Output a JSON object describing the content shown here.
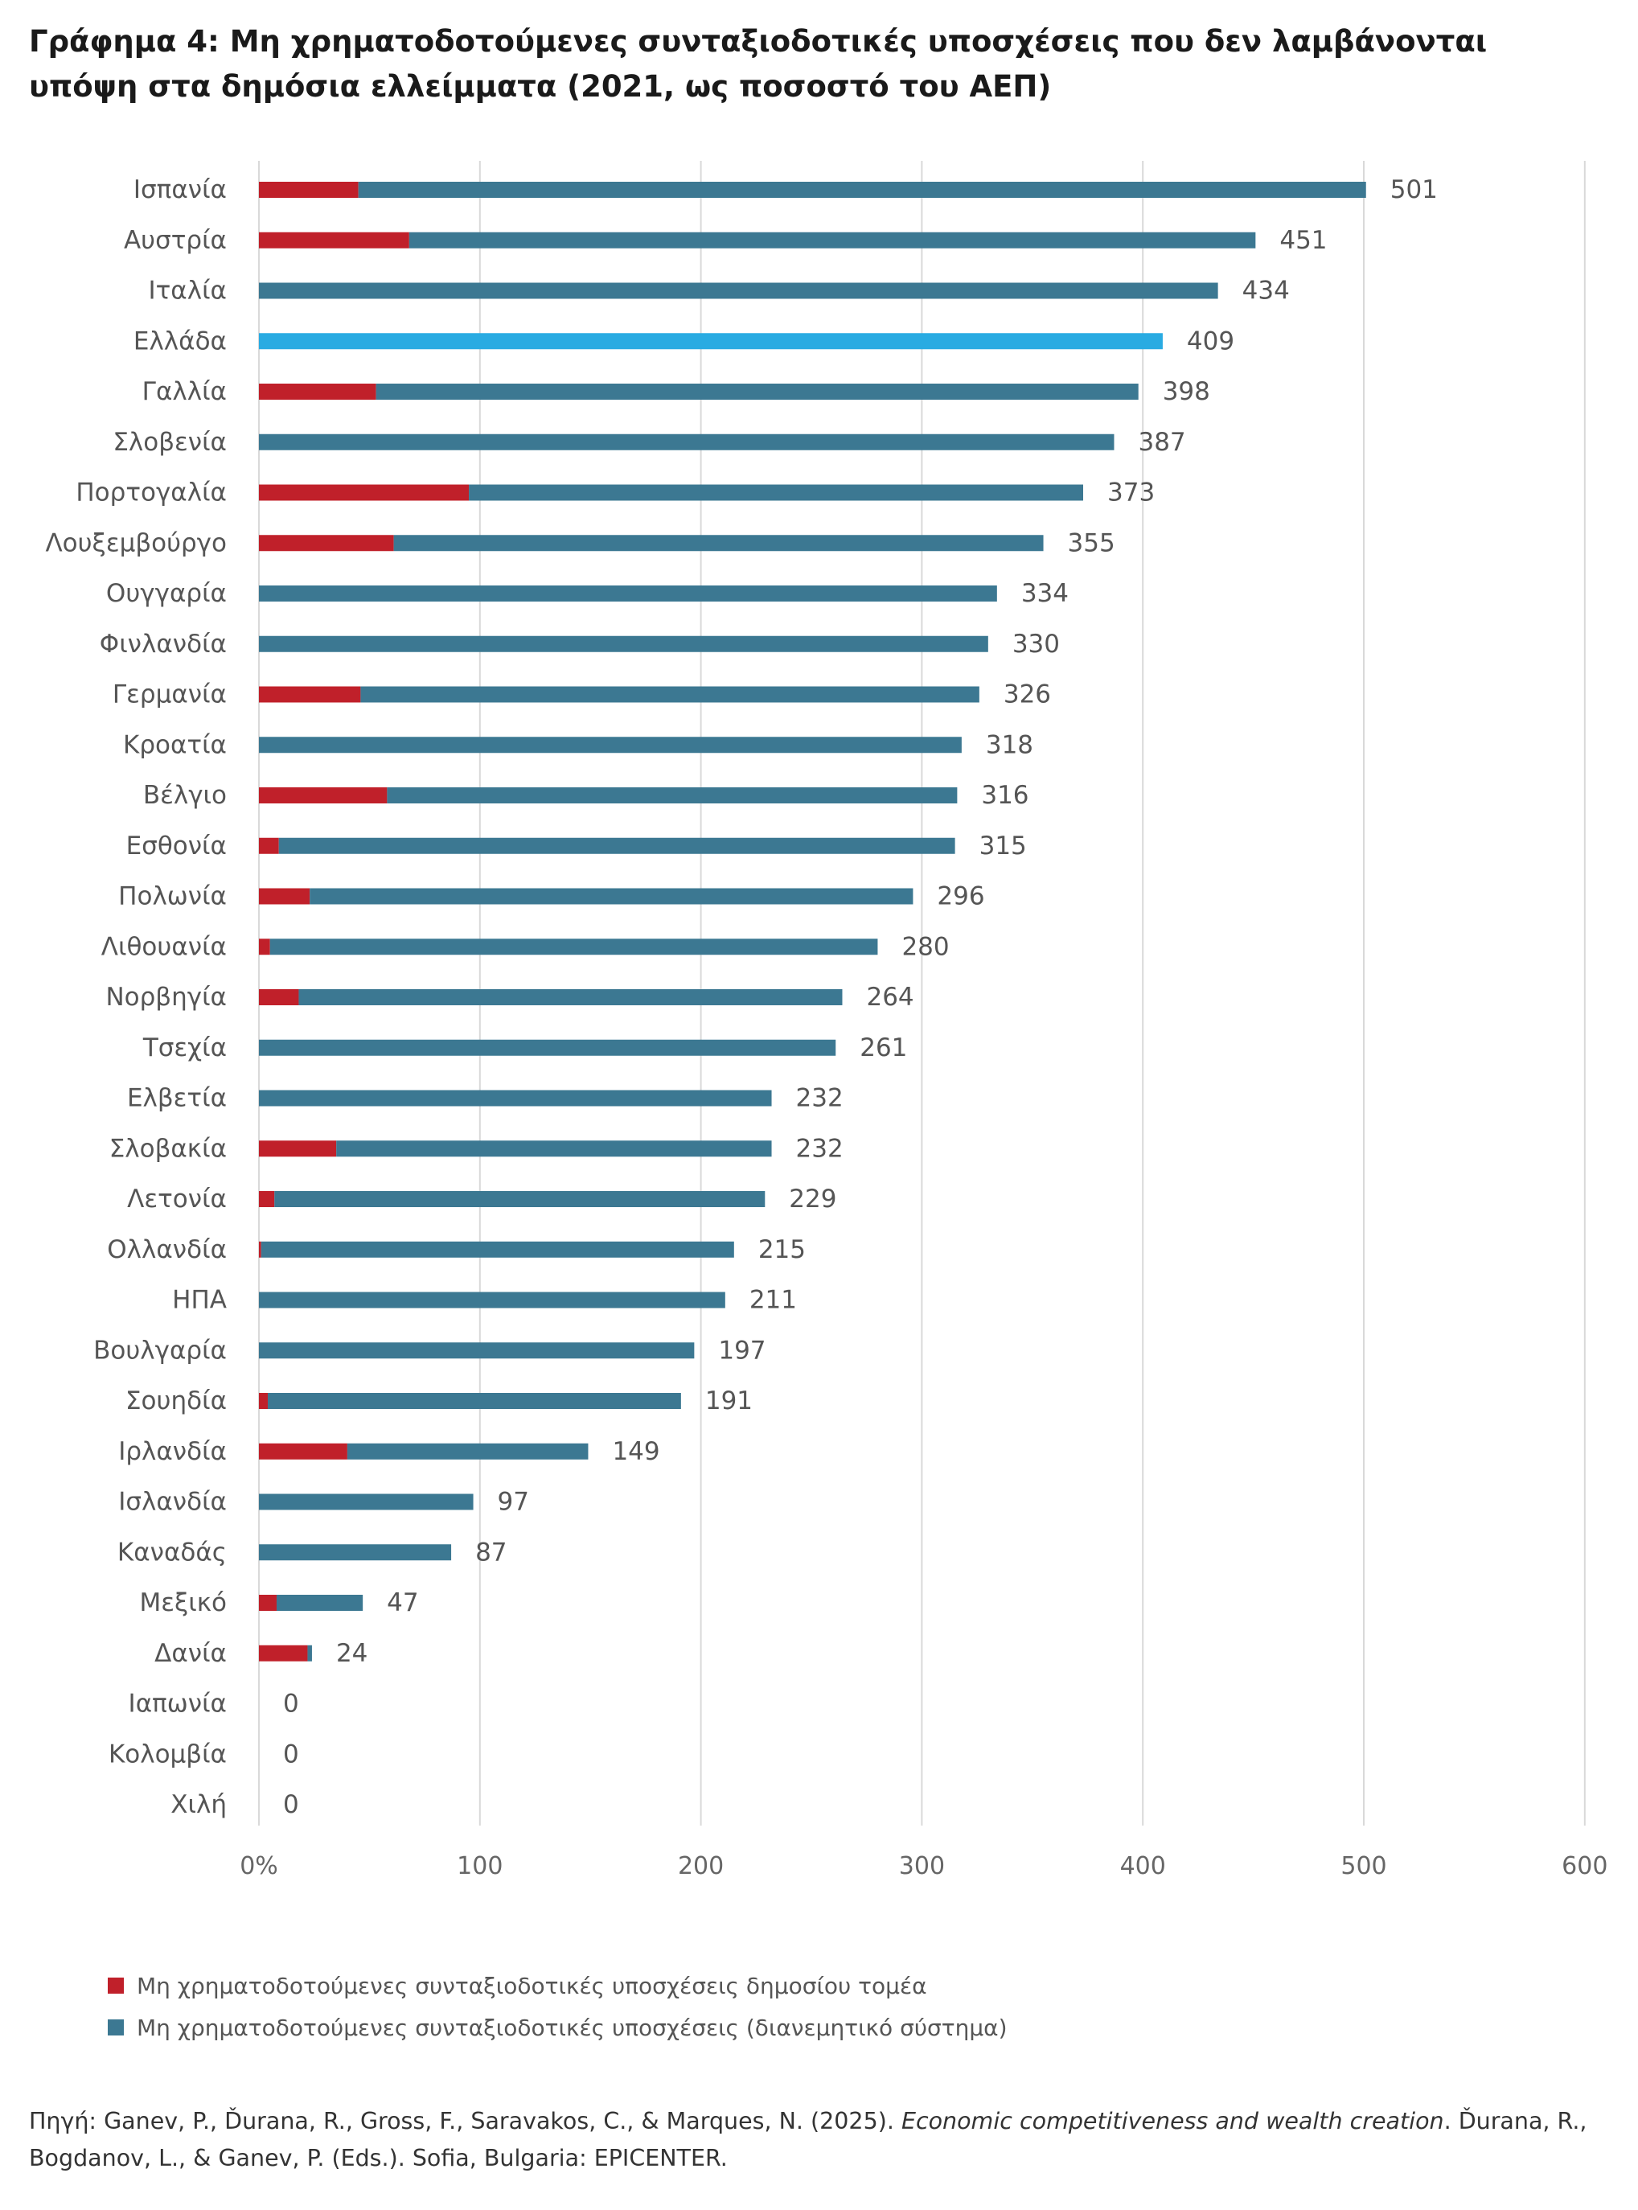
{
  "title": "Γράφημα 4: Μη χρηματοδοτούμενες συνταξιοδοτικές υποσχέσεις που δεν λαμβάνονται υπόψη στα δημόσια ελλείμματα (2021, ως ποσοστό του ΑΕΠ)",
  "colors": {
    "public_sector": "#c0202a",
    "paygo": "#3c7892",
    "highlight": "#29abe2",
    "gridline": "#d9d9d9"
  },
  "legend": {
    "public_sector": "Μη χρηματοδοτούμενες συνταξιοδοτικές υποσχέσεις δημοσίου τομέα",
    "paygo": "Μη χρηματοδοτούμενες συνταξιοδοτικές υποσχέσεις (διανεμητικό σύστημα)"
  },
  "source": {
    "prefix": "Πηγή: Ganev, P., Ďurana, R., Gross, F., Saravakos, C., & Marques, N. (2025). ",
    "italic": "Economic competitiveness and wealth creation",
    "suffix": ". Ďurana, R., Bogdanov, L., & Ganev, P. (Eds.). Sofia, Bulgaria: EPICENTER."
  },
  "chart_data": {
    "type": "bar",
    "orientation": "horizontal",
    "stacked": true,
    "categories": [
      "Ισπανία",
      "Αυστρία",
      "Ιταλία",
      "Ελλάδα",
      "Γαλλία",
      "Σλοβενία",
      "Πορτογαλία",
      "Λουξεμβούργο",
      "Ουγγαρία",
      "Φινλανδία",
      "Γερμανία",
      "Κροατία",
      "Βέλγιο",
      "Εσθονία",
      "Πολωνία",
      "Λιθουανία",
      "Νορβηγία",
      "Τσεχία",
      "Ελβετία",
      "Σλοβακία",
      "Λετονία",
      "Ολλανδία",
      "ΗΠΑ",
      "Βουλγαρία",
      "Σουηδία",
      "Ιρλανδία",
      "Ισλανδία",
      "Καναδάς",
      "Μεξικό",
      "Δανία",
      "Ιαπωνία",
      "Κολομβία",
      "Χιλή"
    ],
    "series": [
      {
        "name": "Μη χρηματοδοτούμενες συνταξιοδοτικές υποσχέσεις δημοσίου τομέα",
        "color": "#c0202a",
        "values": [
          45,
          68,
          0,
          0,
          53,
          0,
          95,
          61,
          0,
          0,
          46,
          0,
          58,
          9,
          23,
          5,
          18,
          0,
          0,
          35,
          7,
          1,
          0,
          0,
          4,
          40,
          0,
          0,
          8,
          22,
          0,
          0,
          0
        ]
      },
      {
        "name": "Μη χρηματοδοτούμενες συνταξιοδοτικές υποσχέσεις (διανεμητικό σύστημα)",
        "color": "#3c7892",
        "values": [
          456,
          383,
          434,
          409,
          345,
          387,
          278,
          294,
          334,
          330,
          280,
          318,
          258,
          306,
          273,
          275,
          246,
          261,
          232,
          197,
          222,
          214,
          211,
          197,
          187,
          109,
          97,
          87,
          39,
          2,
          0,
          0,
          0
        ]
      }
    ],
    "totals": [
      501,
      451,
      434,
      409,
      398,
      387,
      373,
      355,
      334,
      330,
      326,
      318,
      316,
      315,
      296,
      280,
      264,
      261,
      232,
      232,
      229,
      215,
      211,
      197,
      191,
      149,
      97,
      87,
      47,
      24,
      0,
      0,
      0
    ],
    "highlight": "Ελλάδα",
    "x_ticks": [
      "0%",
      "100",
      "200",
      "300",
      "400",
      "500",
      "600"
    ],
    "xlim": [
      0,
      600
    ],
    "grid": true,
    "legend_position": "bottom-left"
  }
}
